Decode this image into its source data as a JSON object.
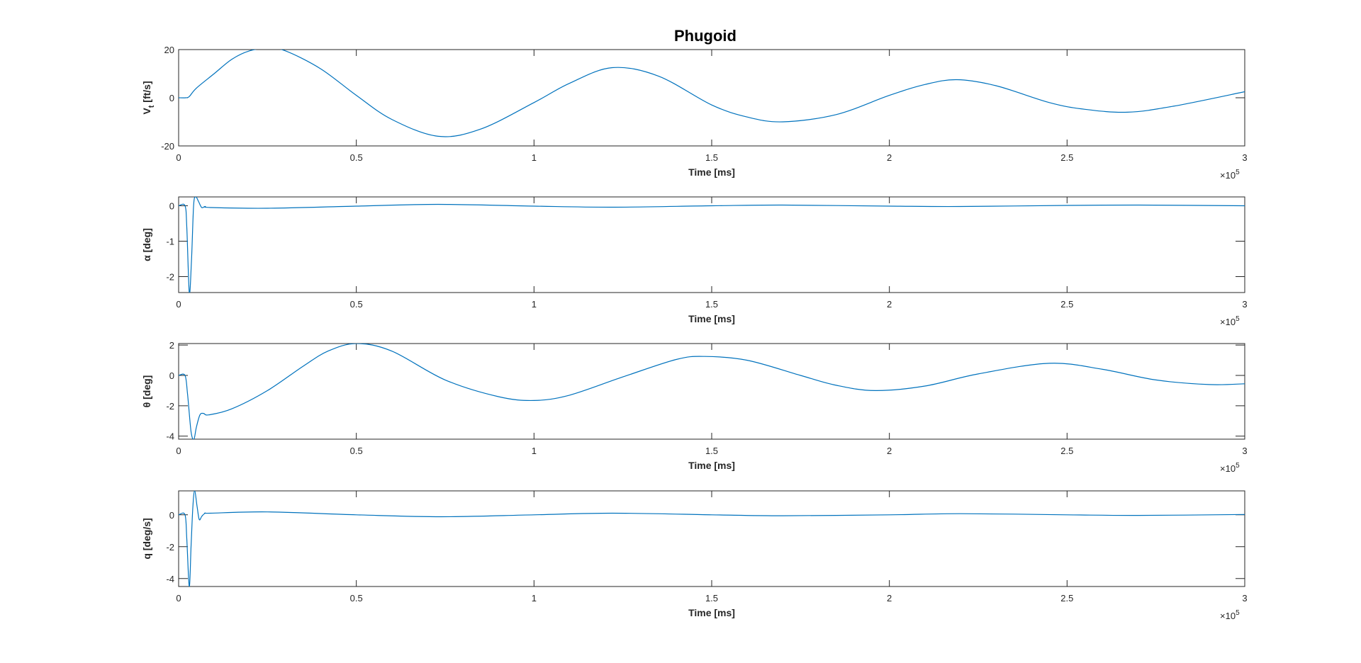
{
  "title": "Phugoid",
  "colors": {
    "line": "#0072BD",
    "axis": "#262626",
    "background": "#ffffff"
  },
  "x_exponent_label": "×10",
  "x_exponent_power": "5",
  "chart_data": [
    {
      "type": "line",
      "xlabel": "Time [ms]",
      "ylabel": "V",
      "ylabel_sub": "t",
      "ylabel_suffix": " [ft/s]",
      "xlim": [
        0,
        300000
      ],
      "ylim": [
        -20,
        20
      ],
      "xticks": [
        0,
        50000,
        100000,
        150000,
        200000,
        250000,
        300000
      ],
      "xtick_labels": [
        "0",
        "0.5",
        "1",
        "1.5",
        "2",
        "2.5",
        "3"
      ],
      "yticks": [
        -20,
        0,
        20
      ],
      "ytick_labels": [
        "-20",
        "0",
        "20"
      ],
      "grid": false,
      "series": [
        {
          "x": [
            0,
            2000,
            3000,
            5000,
            10000,
            15000,
            20000,
            25000,
            30000,
            40000,
            50000,
            60000,
            73000,
            85000,
            100000,
            110000,
            122000,
            135000,
            150000,
            160000,
            170000,
            185000,
            200000,
            210000,
            219000,
            230000,
            245000,
            255000,
            267000,
            280000,
            300000
          ],
          "y": [
            0,
            0,
            0.5,
            4,
            10,
            16,
            19.5,
            20.5,
            19.5,
            12,
            1,
            -9,
            -16,
            -13,
            -2,
            6,
            12.5,
            9,
            -3,
            -8,
            -10,
            -7,
            1,
            5.5,
            7.5,
            5,
            -2,
            -4.8,
            -6,
            -3.5,
            2.5
          ]
        }
      ]
    },
    {
      "type": "line",
      "xlabel": "Time [ms]",
      "ylabel": "α [deg]",
      "xlim": [
        0,
        300000
      ],
      "ylim": [
        -2.45,
        0.25
      ],
      "xticks": [
        0,
        50000,
        100000,
        150000,
        200000,
        250000,
        300000
      ],
      "xtick_labels": [
        "0",
        "0.5",
        "1",
        "1.5",
        "2",
        "2.5",
        "3"
      ],
      "yticks": [
        -2,
        -1,
        0
      ],
      "ytick_labels": [
        "-2",
        "-1",
        "0"
      ],
      "grid": false,
      "series": [
        {
          "x": [
            0,
            1800,
            2300,
            3000,
            3600,
            4200,
            4800,
            5600,
            6500,
            7500,
            9000,
            25000,
            50000,
            73000,
            100000,
            122000,
            150000,
            170000,
            200000,
            220000,
            250000,
            270000,
            300000
          ],
          "y": [
            0,
            0,
            -0.6,
            -2.45,
            -1.6,
            0,
            0.25,
            0.12,
            -0.05,
            -0.02,
            -0.05,
            -0.07,
            -0.01,
            0.04,
            -0.01,
            -0.04,
            0.0,
            0.02,
            -0.01,
            -0.02,
            0.01,
            0.02,
            0.0
          ]
        }
      ]
    },
    {
      "type": "line",
      "xlabel": "Time [ms]",
      "ylabel": "θ [deg]",
      "xlim": [
        0,
        300000
      ],
      "ylim": [
        -4.2,
        2.1
      ],
      "xticks": [
        0,
        50000,
        100000,
        150000,
        200000,
        250000,
        300000
      ],
      "xtick_labels": [
        "0",
        "0.5",
        "1",
        "1.5",
        "2",
        "2.5",
        "3"
      ],
      "yticks": [
        -4,
        -2,
        0,
        2
      ],
      "ytick_labels": [
        "-4",
        "-2",
        "0",
        "2"
      ],
      "grid": false,
      "series": [
        {
          "x": [
            0,
            1800,
            2500,
            3500,
            4300,
            5000,
            6000,
            7000,
            8500,
            15000,
            25000,
            35000,
            42000,
            50000,
            60000,
            75000,
            90000,
            100000,
            110000,
            125000,
            140000,
            148000,
            160000,
            175000,
            185000,
            196000,
            210000,
            225000,
            245000,
            260000,
            275000,
            290000,
            300000
          ],
          "y": [
            0,
            0,
            -1.2,
            -3.7,
            -4.2,
            -3.4,
            -2.6,
            -2.5,
            -2.6,
            -2.2,
            -1.0,
            0.6,
            1.6,
            2.1,
            1.6,
            -0.3,
            -1.4,
            -1.65,
            -1.3,
            -0.1,
            1.05,
            1.25,
            1.0,
            0.0,
            -0.65,
            -1.0,
            -0.7,
            0.1,
            0.8,
            0.4,
            -0.3,
            -0.6,
            -0.55
          ]
        }
      ]
    },
    {
      "type": "line",
      "xlabel": "Time [ms]",
      "ylabel": "q [deg/s]",
      "xlim": [
        0,
        300000
      ],
      "ylim": [
        -4.5,
        1.5
      ],
      "xticks": [
        0,
        50000,
        100000,
        150000,
        200000,
        250000,
        300000
      ],
      "xtick_labels": [
        "0",
        "0.5",
        "1",
        "1.5",
        "2",
        "2.5",
        "3"
      ],
      "yticks": [
        -4,
        -2,
        0
      ],
      "ytick_labels": [
        "-4",
        "-2",
        "0"
      ],
      "grid": false,
      "series": [
        {
          "x": [
            0,
            1800,
            2300,
            3000,
            3500,
            4000,
            4500,
            5200,
            5800,
            6500,
            7500,
            9000,
            25000,
            50000,
            74000,
            100000,
            122000,
            150000,
            170000,
            200000,
            220000,
            250000,
            270000,
            300000
          ],
          "y": [
            0,
            0,
            -1.5,
            -4.5,
            -2.0,
            0.5,
            1.5,
            0.5,
            -0.3,
            -0.1,
            0.1,
            0.1,
            0.18,
            0.0,
            -0.12,
            0.0,
            0.1,
            0.0,
            -0.06,
            0.0,
            0.07,
            0.0,
            -0.04,
            0.02
          ]
        }
      ]
    }
  ]
}
